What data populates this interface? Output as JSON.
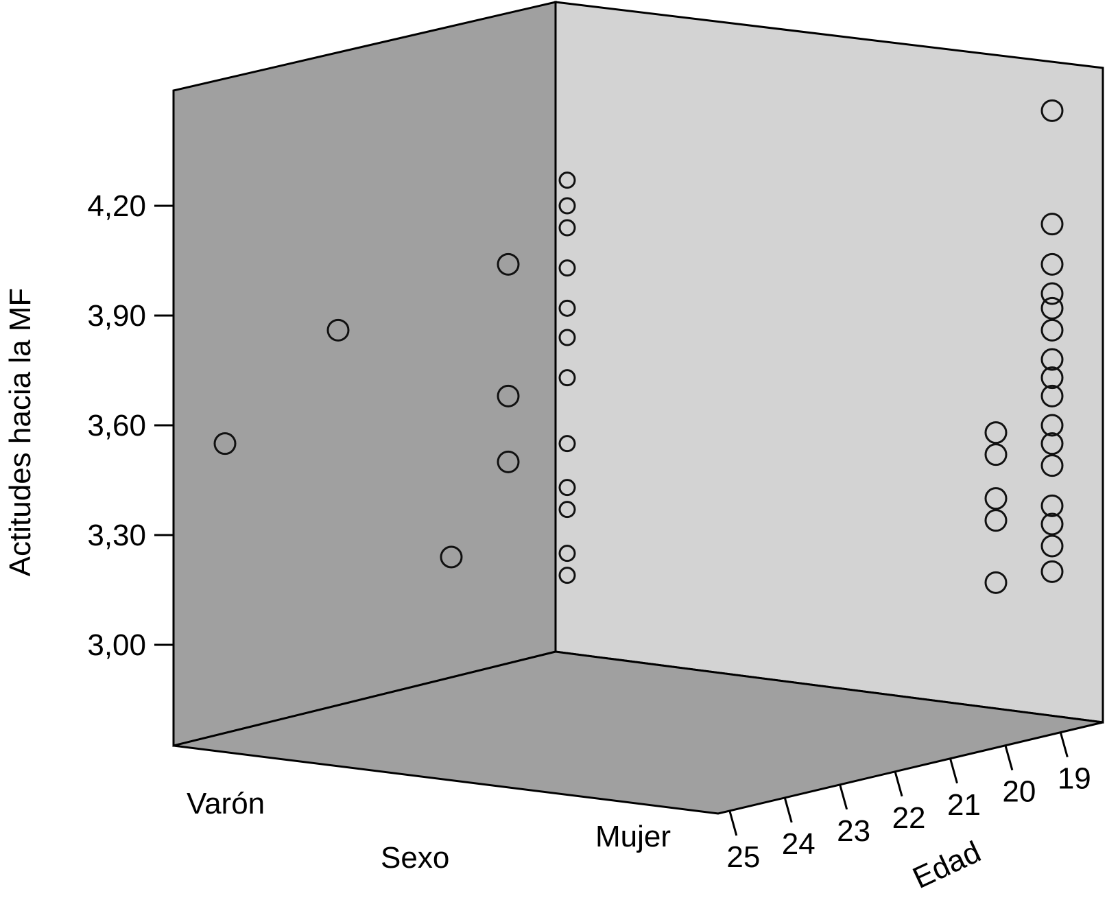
{
  "chart_data": {
    "type": "scatter",
    "projection": "3d",
    "y_axis": {
      "label": "Actitudes hacia la MF",
      "ticks": [
        "3,00",
        "3,30",
        "3,60",
        "3,90",
        "4,20"
      ],
      "tick_values": [
        3.0,
        3.3,
        3.6,
        3.9,
        4.2
      ]
    },
    "x_axis": {
      "label": "Sexo",
      "categories": [
        "Varón",
        "Mujer"
      ]
    },
    "z_axis": {
      "label": "Edad",
      "ticks": [
        "25",
        "24",
        "23",
        "22",
        "21",
        "20",
        "19"
      ],
      "tick_values": [
        25,
        24,
        23,
        22,
        21,
        20,
        19
      ]
    },
    "grid": false,
    "colors": {
      "left_wall": "#a0a0a0",
      "right_wall": "#d3d3d3",
      "floor": "#a0a0a0",
      "marker_stroke": "#111111"
    },
    "points": [
      {
        "sexo": "Varón",
        "edad": 24,
        "y": 3.55
      },
      {
        "sexo": "Varón",
        "edad": 22,
        "y": 3.86
      },
      {
        "sexo": "Varón",
        "edad": 20,
        "y": 4.04
      },
      {
        "sexo": "Varón",
        "edad": 20,
        "y": 3.68
      },
      {
        "sexo": "Varón",
        "edad": 20,
        "y": 3.5
      },
      {
        "sexo": "Varón",
        "edad": 21,
        "y": 3.24
      },
      {
        "sexo": "Varón",
        "edad": 19,
        "y": 4.27
      },
      {
        "sexo": "Varón",
        "edad": 19,
        "y": 4.2
      },
      {
        "sexo": "Varón",
        "edad": 19,
        "y": 4.14
      },
      {
        "sexo": "Varón",
        "edad": 19,
        "y": 4.03
      },
      {
        "sexo": "Varón",
        "edad": 19,
        "y": 3.92
      },
      {
        "sexo": "Varón",
        "edad": 19,
        "y": 3.84
      },
      {
        "sexo": "Varón",
        "edad": 19,
        "y": 3.73
      },
      {
        "sexo": "Varón",
        "edad": 19,
        "y": 3.55
      },
      {
        "sexo": "Varón",
        "edad": 19,
        "y": 3.43
      },
      {
        "sexo": "Varón",
        "edad": 19,
        "y": 3.37
      },
      {
        "sexo": "Varón",
        "edad": 19,
        "y": 3.25
      },
      {
        "sexo": "Varón",
        "edad": 19,
        "y": 3.19
      },
      {
        "sexo": "Mujer",
        "edad": 20,
        "y": 3.58
      },
      {
        "sexo": "Mujer",
        "edad": 20,
        "y": 3.52
      },
      {
        "sexo": "Mujer",
        "edad": 20,
        "y": 3.4
      },
      {
        "sexo": "Mujer",
        "edad": 20,
        "y": 3.34
      },
      {
        "sexo": "Mujer",
        "edad": 20,
        "y": 3.17
      },
      {
        "sexo": "Mujer",
        "edad": 19,
        "y": 4.46
      },
      {
        "sexo": "Mujer",
        "edad": 19,
        "y": 4.15
      },
      {
        "sexo": "Mujer",
        "edad": 19,
        "y": 4.04
      },
      {
        "sexo": "Mujer",
        "edad": 19,
        "y": 3.96
      },
      {
        "sexo": "Mujer",
        "edad": 19,
        "y": 3.92
      },
      {
        "sexo": "Mujer",
        "edad": 19,
        "y": 3.86
      },
      {
        "sexo": "Mujer",
        "edad": 19,
        "y": 3.78
      },
      {
        "sexo": "Mujer",
        "edad": 19,
        "y": 3.73
      },
      {
        "sexo": "Mujer",
        "edad": 19,
        "y": 3.68
      },
      {
        "sexo": "Mujer",
        "edad": 19,
        "y": 3.6
      },
      {
        "sexo": "Mujer",
        "edad": 19,
        "y": 3.55
      },
      {
        "sexo": "Mujer",
        "edad": 19,
        "y": 3.49
      },
      {
        "sexo": "Mujer",
        "edad": 19,
        "y": 3.38
      },
      {
        "sexo": "Mujer",
        "edad": 19,
        "y": 3.33
      },
      {
        "sexo": "Mujer",
        "edad": 19,
        "y": 3.27
      },
      {
        "sexo": "Mujer",
        "edad": 19,
        "y": 3.2
      }
    ]
  }
}
